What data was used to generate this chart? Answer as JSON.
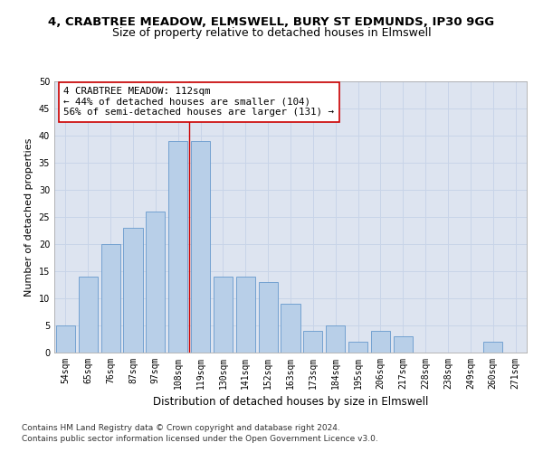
{
  "title_main": "4, CRABTREE MEADOW, ELMSWELL, BURY ST EDMUNDS, IP30 9GG",
  "title_sub": "Size of property relative to detached houses in Elmswell",
  "xlabel": "Distribution of detached houses by size in Elmswell",
  "ylabel": "Number of detached properties",
  "categories": [
    "54sqm",
    "65sqm",
    "76sqm",
    "87sqm",
    "97sqm",
    "108sqm",
    "119sqm",
    "130sqm",
    "141sqm",
    "152sqm",
    "163sqm",
    "173sqm",
    "184sqm",
    "195sqm",
    "206sqm",
    "217sqm",
    "228sqm",
    "238sqm",
    "249sqm",
    "260sqm",
    "271sqm"
  ],
  "values": [
    5,
    14,
    20,
    23,
    26,
    39,
    39,
    14,
    14,
    13,
    9,
    4,
    5,
    2,
    4,
    3,
    0,
    0,
    0,
    2,
    0
  ],
  "bar_color": "#b8cfe8",
  "bar_edge_color": "#6699cc",
  "bar_width": 0.85,
  "property_line_x": 5.5,
  "annotation_text": "4 CRABTREE MEADOW: 112sqm\n← 44% of detached houses are smaller (104)\n56% of semi-detached houses are larger (131) →",
  "annotation_box_color": "#ffffff",
  "annotation_box_edge_color": "#cc0000",
  "ylim": [
    0,
    50
  ],
  "yticks": [
    0,
    5,
    10,
    15,
    20,
    25,
    30,
    35,
    40,
    45,
    50
  ],
  "grid_color": "#c8d4e8",
  "background_color": "#dde4f0",
  "footer_line1": "Contains HM Land Registry data © Crown copyright and database right 2024.",
  "footer_line2": "Contains public sector information licensed under the Open Government Licence v3.0.",
  "title_fontsize": 9.5,
  "subtitle_fontsize": 9,
  "tick_fontsize": 7,
  "xlabel_fontsize": 8.5,
  "ylabel_fontsize": 8,
  "annotation_fontsize": 7.8,
  "footer_fontsize": 6.5
}
